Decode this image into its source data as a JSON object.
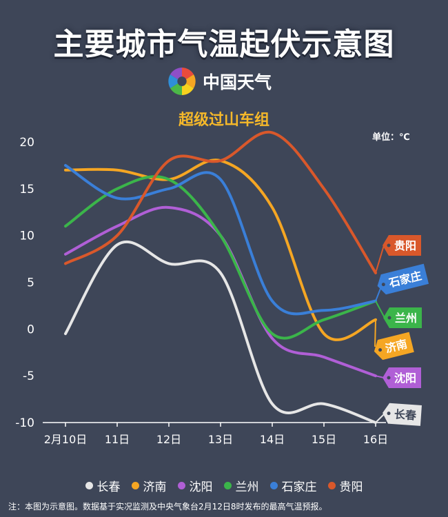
{
  "header": {
    "title": "主要城市气温起伏示意图",
    "brand": "中国天气",
    "unit": "单位：℃"
  },
  "note": "注：本图为示意图。数据基于实况监测及中央气象台2月12日8时发布的最高气温预报。",
  "chart_data": {
    "type": "line",
    "title": "超级过山车组",
    "xlabel": "",
    "ylabel": "",
    "categories": [
      "2月10日",
      "11日",
      "12日",
      "13日",
      "14日",
      "15日",
      "16日"
    ],
    "ylim": [
      -10,
      20
    ],
    "yticks": [
      -10,
      -5,
      0,
      5,
      10,
      15,
      20
    ],
    "grid": false,
    "legend": "bottom",
    "series": [
      {
        "name": "长春",
        "color": "#e6e6e6",
        "values": [
          -0.5,
          9,
          7,
          6,
          -8,
          -8,
          -10
        ]
      },
      {
        "name": "济南",
        "color": "#f5a623",
        "values": [
          17,
          17,
          16,
          18,
          13,
          -0.5,
          1
        ]
      },
      {
        "name": "沈阳",
        "color": "#b05fd6",
        "values": [
          8,
          11,
          13,
          10,
          -1,
          -3,
          -5
        ]
      },
      {
        "name": "兰州",
        "color": "#3bb54a",
        "values": [
          11,
          15,
          16,
          10,
          -0.5,
          1,
          3
        ]
      },
      {
        "name": "石家庄",
        "color": "#3a7fd8",
        "values": [
          17.5,
          14,
          15,
          16,
          3,
          2,
          3
        ]
      },
      {
        "name": "贵阳",
        "color": "#d9582b",
        "values": [
          7,
          10,
          18,
          18,
          21,
          15,
          6
        ]
      }
    ]
  }
}
